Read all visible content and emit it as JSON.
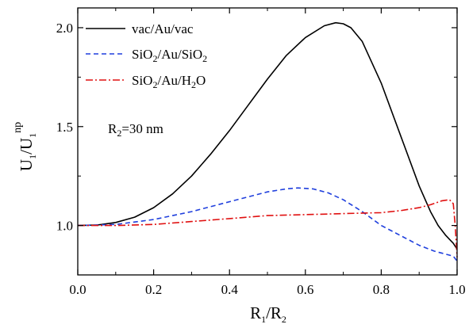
{
  "chart_data": {
    "type": "line",
    "title": "",
    "xlabel": {
      "main": "R",
      "sub1": "1",
      "mid": "/R",
      "sub2": "2"
    },
    "ylabel": {
      "main": "U",
      "sub1": "1",
      "mid": "/U",
      "sub2": "1",
      "sup": "np"
    },
    "xlim": [
      0.0,
      1.0
    ],
    "ylim": [
      0.75,
      2.1
    ],
    "xticks": [
      0.0,
      0.2,
      0.4,
      0.6,
      0.8,
      1.0
    ],
    "xtick_labels": [
      "0.0",
      "0.2",
      "0.4",
      "0.6",
      "0.8",
      "1.0"
    ],
    "yticks": [
      1.0,
      1.5,
      2.0
    ],
    "ytick_labels": [
      "1.0",
      "1.5",
      "2.0"
    ],
    "grid": false,
    "legend_position": "top-left",
    "annotation": {
      "main": "R",
      "sub": "2",
      "rest": "=30 nm"
    },
    "series": [
      {
        "name": "vac/Au/vac",
        "legend": [
          {
            "t": "vac/Au/vac"
          }
        ],
        "color": "#000000",
        "dash": "solid",
        "x": [
          0,
          0.05,
          0.1,
          0.15,
          0.2,
          0.25,
          0.3,
          0.35,
          0.4,
          0.45,
          0.5,
          0.55,
          0.6,
          0.65,
          0.68,
          0.7,
          0.72,
          0.75,
          0.8,
          0.85,
          0.9,
          0.93,
          0.95,
          0.97,
          0.98,
          0.99,
          1.0
        ],
        "y": [
          1.0,
          1.002,
          1.015,
          1.042,
          1.09,
          1.16,
          1.25,
          1.36,
          1.48,
          1.61,
          1.74,
          1.86,
          1.95,
          2.01,
          2.025,
          2.02,
          2.0,
          1.93,
          1.72,
          1.46,
          1.2,
          1.07,
          1.0,
          0.95,
          0.93,
          0.91,
          0.88
        ]
      },
      {
        "name": "SiO2/Au/SiO2",
        "legend": [
          {
            "t": "SiO"
          },
          {
            "t": "2",
            "sub": true
          },
          {
            "t": "/Au/SiO"
          },
          {
            "t": "2",
            "sub": true
          }
        ],
        "color": "#1f3fdd",
        "dash": "6,4",
        "x": [
          0,
          0.1,
          0.2,
          0.3,
          0.4,
          0.45,
          0.5,
          0.55,
          0.58,
          0.62,
          0.66,
          0.7,
          0.75,
          0.8,
          0.85,
          0.9,
          0.94,
          0.97,
          0.99,
          1.0
        ],
        "y": [
          1.0,
          1.005,
          1.03,
          1.07,
          1.12,
          1.145,
          1.17,
          1.185,
          1.19,
          1.185,
          1.165,
          1.13,
          1.07,
          1.0,
          0.95,
          0.9,
          0.87,
          0.855,
          0.845,
          0.82
        ]
      },
      {
        "name": "SiO2/Au/H2O",
        "legend": [
          {
            "t": "SiO"
          },
          {
            "t": "2",
            "sub": true
          },
          {
            "t": "/Au/H"
          },
          {
            "t": "2",
            "sub": true
          },
          {
            "t": "O"
          }
        ],
        "color": "#e01010",
        "dash": "9,3,2,3",
        "x": [
          0,
          0.1,
          0.2,
          0.3,
          0.4,
          0.5,
          0.6,
          0.7,
          0.8,
          0.85,
          0.9,
          0.93,
          0.96,
          0.98,
          0.99,
          0.995,
          1.0
        ],
        "y": [
          1.0,
          1.0,
          1.005,
          1.02,
          1.035,
          1.05,
          1.055,
          1.06,
          1.065,
          1.075,
          1.09,
          1.105,
          1.125,
          1.13,
          1.11,
          1.0,
          0.84
        ]
      }
    ]
  }
}
